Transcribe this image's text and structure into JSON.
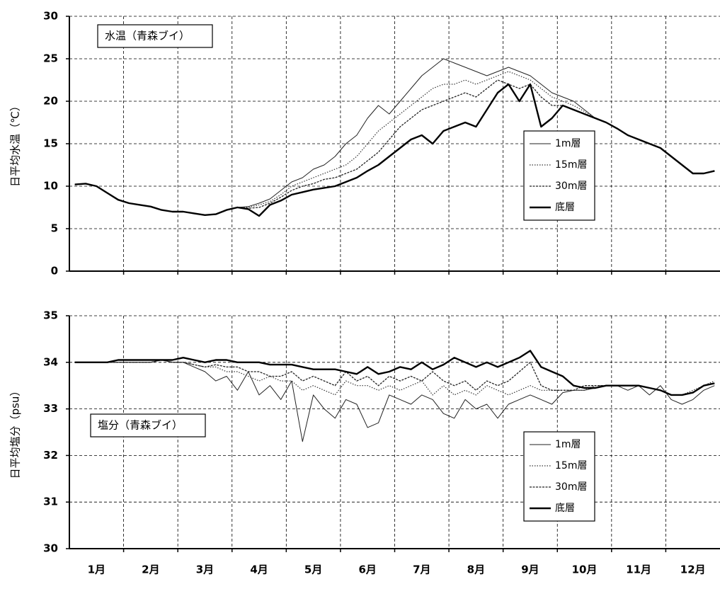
{
  "chart_data": [
    {
      "type": "line",
      "title": "水温（青森ブイ）",
      "y_label": "日平均水温（℃）",
      "ylim": [
        0,
        30
      ],
      "yticks": [
        0,
        5,
        10,
        15,
        20,
        25,
        30
      ],
      "grid": true,
      "legend": "right",
      "series": [
        {
          "name": "1m層",
          "color": "#222222",
          "style": "solid",
          "values": [
            10.2,
            10.3,
            10.0,
            9.2,
            8.4,
            8.0,
            7.8,
            7.6,
            7.2,
            7.0,
            7.0,
            6.8,
            6.6,
            6.7,
            7.2,
            7.5,
            7.6,
            8.0,
            8.5,
            9.5,
            10.5,
            11,
            12,
            12.5,
            13.5,
            15,
            16,
            18,
            19.5,
            18.5,
            20,
            21.5,
            23,
            24,
            25,
            24.5,
            24,
            23.5,
            23,
            23.5,
            24,
            23.5,
            23,
            22,
            21,
            20.5,
            20,
            19,
            18,
            17.5,
            16.8,
            16,
            15.5,
            15,
            14.5,
            13.5,
            12.5,
            11.5,
            11.5,
            11.8
          ]
        },
        {
          "name": "15m層",
          "color": "#333333",
          "style": "dotted",
          "values": [
            10.2,
            10.3,
            10.0,
            9.2,
            8.4,
            8.0,
            7.8,
            7.6,
            7.2,
            7.0,
            7.0,
            6.8,
            6.6,
            6.7,
            7.2,
            7.5,
            7.5,
            7.8,
            8.2,
            9.0,
            10,
            10.5,
            11,
            11.5,
            12,
            12.5,
            13.5,
            15,
            16.5,
            17.5,
            18.5,
            19.5,
            20.5,
            21.5,
            22,
            22,
            22.5,
            22,
            22.5,
            23,
            23.5,
            23,
            22.5,
            21.5,
            20.5,
            20,
            19.5,
            18.8,
            18,
            17.5,
            16.8,
            16,
            15.5,
            15,
            14.5,
            13.5,
            12.5,
            11.5,
            11.5,
            11.8
          ]
        },
        {
          "name": "30m層",
          "color": "#222222",
          "style": "dashed",
          "values": [
            10.2,
            10.3,
            10.0,
            9.2,
            8.4,
            8.0,
            7.8,
            7.6,
            7.2,
            7.0,
            7.0,
            6.8,
            6.6,
            6.7,
            7.2,
            7.5,
            7.4,
            7.5,
            8,
            8.7,
            9.5,
            10,
            10.3,
            10.8,
            11,
            11.5,
            12,
            13,
            14,
            15.5,
            17,
            18,
            19,
            19.5,
            20,
            20.5,
            21,
            20.5,
            21.5,
            22.5,
            22,
            21.5,
            22,
            20.5,
            19.5,
            19.5,
            19,
            18.5,
            18,
            17.5,
            16.8,
            16,
            15.5,
            15,
            14.5,
            13.5,
            12.5,
            11.5,
            11.5,
            11.8
          ]
        },
        {
          "name": "底層",
          "color": "#000000",
          "style": "bold",
          "values": [
            10.2,
            10.3,
            10.0,
            9.2,
            8.4,
            8.0,
            7.8,
            7.6,
            7.2,
            7.0,
            7.0,
            6.8,
            6.6,
            6.7,
            7.2,
            7.5,
            7.3,
            6.5,
            7.8,
            8.3,
            9.0,
            9.3,
            9.6,
            9.8,
            10.0,
            10.5,
            11,
            11.8,
            12.5,
            13.5,
            14.5,
            15.5,
            16,
            15,
            16.5,
            17,
            17.5,
            17,
            19,
            21,
            22,
            20,
            22,
            17,
            18,
            19.5,
            19,
            18.5,
            18,
            17.5,
            16.8,
            16,
            15.5,
            15,
            14.5,
            13.5,
            12.5,
            11.5,
            11.5,
            11.8
          ]
        }
      ]
    },
    {
      "type": "line",
      "title": "塩分（青森ブイ）",
      "y_label": "日平均塩分（psu）",
      "categories": [
        null,
        null,
        "1月",
        null,
        null,
        null,
        null,
        "2月",
        null,
        null,
        null,
        null,
        "3月",
        null,
        null,
        null,
        null,
        "4月",
        null,
        null,
        null,
        null,
        "5月",
        null,
        null,
        null,
        null,
        "6月",
        null,
        null,
        null,
        null,
        "7月",
        null,
        null,
        null,
        null,
        "8月",
        null,
        null,
        null,
        null,
        "9月",
        null,
        null,
        null,
        null,
        "10月",
        null,
        null,
        null,
        null,
        "11月",
        null,
        null,
        null,
        null,
        "12月",
        null,
        null
      ],
      "ylim": [
        30,
        35
      ],
      "yticks": [
        30,
        31,
        32,
        33,
        34,
        35
      ],
      "grid": true,
      "legend": "right",
      "series": [
        {
          "name": "1m層",
          "color": "#222222",
          "style": "solid",
          "values": [
            34.0,
            34.0,
            34.0,
            34.0,
            34.0,
            34.0,
            34.0,
            34.0,
            34.05,
            34.0,
            34.0,
            33.9,
            33.8,
            33.6,
            33.7,
            33.4,
            33.8,
            33.3,
            33.5,
            33.2,
            33.6,
            32.3,
            33.3,
            33.0,
            32.8,
            33.2,
            33.1,
            32.6,
            32.7,
            33.3,
            33.2,
            33.1,
            33.3,
            33.2,
            32.9,
            32.8,
            33.2,
            33.0,
            33.1,
            32.8,
            33.1,
            33.2,
            33.3,
            33.2,
            33.1,
            33.35,
            33.4,
            33.4,
            33.45,
            33.5,
            33.5,
            33.4,
            33.5,
            33.3,
            33.5,
            33.2,
            33.1,
            33.2,
            33.4,
            33.5
          ]
        },
        {
          "name": "15m層",
          "color": "#333333",
          "style": "dotted",
          "values": [
            34.0,
            34.0,
            34.0,
            34.0,
            34.0,
            34.0,
            34.0,
            34.0,
            34.05,
            34.0,
            34.0,
            33.95,
            33.9,
            33.9,
            33.8,
            33.8,
            33.7,
            33.6,
            33.7,
            33.6,
            33.6,
            33.4,
            33.5,
            33.4,
            33.3,
            33.6,
            33.5,
            33.5,
            33.4,
            33.5,
            33.4,
            33.5,
            33.6,
            33.3,
            33.5,
            33.3,
            33.4,
            33.3,
            33.5,
            33.4,
            33.3,
            33.4,
            33.5,
            33.4,
            33.4,
            33.4,
            33.4,
            33.4,
            33.5,
            33.5,
            33.5,
            33.5,
            33.5,
            33.45,
            33.4,
            33.3,
            33.3,
            33.4,
            33.5,
            33.6
          ]
        },
        {
          "name": "30m層",
          "color": "#222222",
          "style": "dashed",
          "values": [
            34.0,
            34.0,
            34.0,
            34.0,
            34.0,
            34.0,
            34.0,
            34.0,
            34.05,
            34.0,
            34.0,
            33.95,
            33.9,
            33.95,
            33.9,
            33.9,
            33.8,
            33.8,
            33.7,
            33.7,
            33.8,
            33.6,
            33.7,
            33.6,
            33.5,
            33.8,
            33.6,
            33.7,
            33.5,
            33.7,
            33.6,
            33.7,
            33.6,
            33.8,
            33.6,
            33.5,
            33.6,
            33.4,
            33.6,
            33.5,
            33.6,
            33.8,
            34.0,
            33.5,
            33.4,
            33.4,
            33.4,
            33.5,
            33.5,
            33.5,
            33.5,
            33.5,
            33.5,
            33.45,
            33.4,
            33.3,
            33.3,
            33.35,
            33.5,
            33.55
          ]
        },
        {
          "name": "底層",
          "color": "#000000",
          "style": "bold",
          "values": [
            34.0,
            34.0,
            34.0,
            34.0,
            34.05,
            34.05,
            34.05,
            34.05,
            34.05,
            34.05,
            34.1,
            34.05,
            34.0,
            34.05,
            34.05,
            34.0,
            34.0,
            34.0,
            33.95,
            33.95,
            33.95,
            33.9,
            33.85,
            33.85,
            33.85,
            33.8,
            33.75,
            33.9,
            33.75,
            33.8,
            33.9,
            33.85,
            34.0,
            33.85,
            33.95,
            34.1,
            34.0,
            33.9,
            34.0,
            33.9,
            34.0,
            34.1,
            34.25,
            33.9,
            33.8,
            33.7,
            33.5,
            33.45,
            33.45,
            33.5,
            33.5,
            33.5,
            33.5,
            33.45,
            33.4,
            33.3,
            33.3,
            33.35,
            33.5,
            33.55
          ]
        }
      ]
    }
  ]
}
